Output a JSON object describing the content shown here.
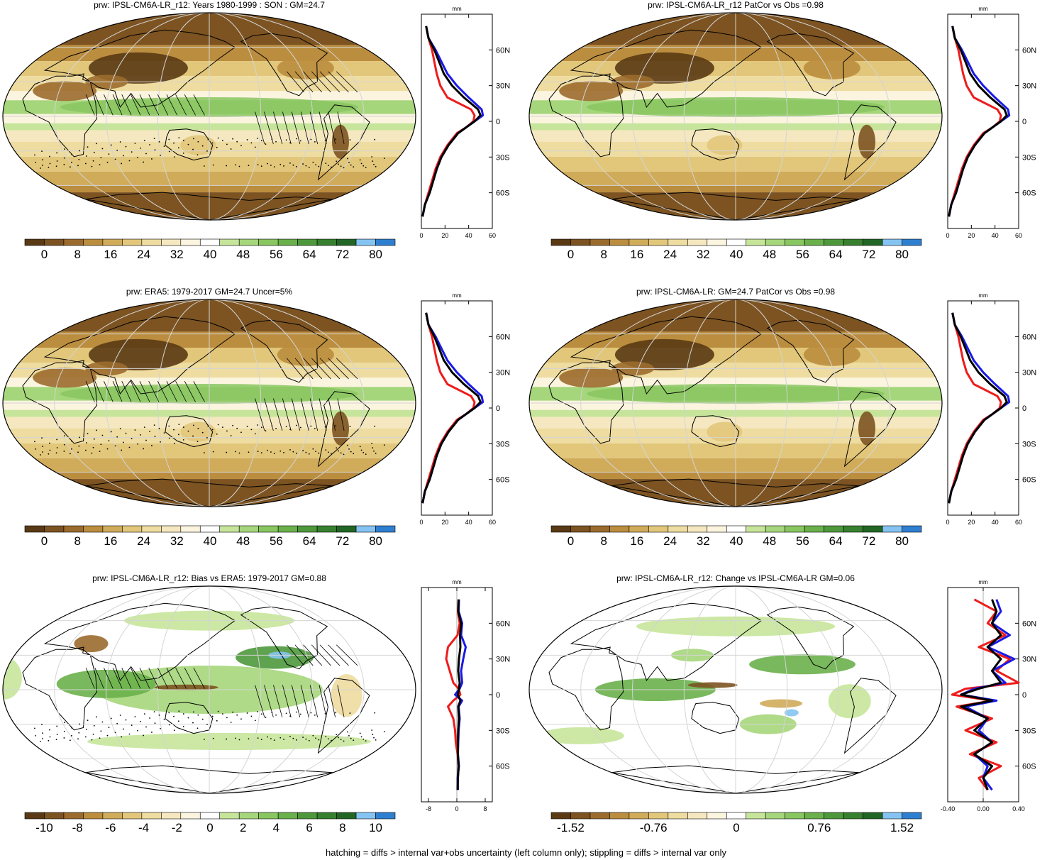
{
  "footer": "hatching = diffs > internal var+obs uncertainty (left column only); stippling = diffs > internal var only",
  "colors": {
    "abs_palette": [
      "#5a3a14",
      "#7c5321",
      "#9b6b2e",
      "#bb8d3e",
      "#d0ab5a",
      "#e2c77b",
      "#eedca0",
      "#f5e8c0",
      "#fbf4df",
      "#ffffff",
      "#c6e59a",
      "#a6d67b",
      "#88c660",
      "#6ab04b",
      "#4e983c",
      "#37802f",
      "#226626",
      "#85c4f2",
      "#2f7fd1"
    ],
    "diff_palette": [
      "#5a3a14",
      "#7c5321",
      "#9b6b2e",
      "#bb8d3e",
      "#d0ab5a",
      "#e2c77b",
      "#eedca0",
      "#f5e8c0",
      "#fbf4df",
      "#ffffff",
      "#c6e59a",
      "#a6d67b",
      "#88c660",
      "#6ab04b",
      "#4e983c",
      "#37802f",
      "#226626",
      "#85c4f2",
      "#2f7fd1"
    ],
    "obs_line": "#ee1c1c",
    "model_line": "#1a1ae6",
    "ens_line": "#000000"
  },
  "chart_data": [
    {
      "id": "p1",
      "type": "heatmap",
      "title": "prw: IPSL-CM6A-LR_r12: Years 1980-1999 : SON : GM=24.7",
      "colorbar": {
        "palette": "abs",
        "labels": [
          "0",
          "8",
          "16",
          "24",
          "32",
          "40",
          "48",
          "56",
          "64",
          "72",
          "80"
        ]
      },
      "pattern": "abs",
      "hatching": true,
      "profile": {
        "unit": "mm",
        "xlim": [
          0,
          60
        ],
        "xticks": [
          "0",
          "20",
          "40",
          "60"
        ],
        "yticks": [
          "60N",
          "30N",
          "0",
          "30S",
          "60S"
        ],
        "lat": [
          80,
          70,
          60,
          50,
          40,
          30,
          20,
          10,
          5,
          0,
          -5,
          -10,
          -20,
          -30,
          -40,
          -50,
          -60,
          -70,
          -80
        ],
        "red": [
          4,
          6,
          9,
          11,
          13,
          16,
          22,
          42,
          45,
          44,
          38,
          30,
          22,
          16,
          12,
          9,
          6,
          3,
          1
        ],
        "blue": [
          4,
          6,
          12,
          17,
          22,
          30,
          40,
          51,
          52,
          45,
          38,
          31,
          23,
          17,
          13,
          10,
          7,
          3,
          1
        ],
        "black": [
          4,
          6,
          11,
          15,
          19,
          26,
          36,
          48,
          50,
          45,
          38,
          31,
          23,
          17,
          13,
          10,
          7,
          3,
          1
        ]
      }
    },
    {
      "id": "p2",
      "type": "heatmap",
      "title": "prw: IPSL-CM6A-LR_r12 PatCor vs Obs =0.98",
      "colorbar": {
        "palette": "abs",
        "labels": [
          "0",
          "8",
          "16",
          "24",
          "32",
          "40",
          "48",
          "56",
          "64",
          "72",
          "80"
        ]
      },
      "pattern": "abs",
      "hatching": false,
      "profile": {
        "unit": "mm",
        "xlim": [
          0,
          60
        ],
        "xticks": [
          "0",
          "20",
          "40",
          "60"
        ],
        "yticks": [
          "60N",
          "30N",
          "0",
          "30S",
          "60S"
        ],
        "lat": [
          80,
          70,
          60,
          50,
          40,
          30,
          20,
          10,
          5,
          0,
          -5,
          -10,
          -20,
          -30,
          -40,
          -50,
          -60,
          -70,
          -80
        ],
        "red": [
          4,
          6,
          9,
          11,
          13,
          16,
          22,
          42,
          45,
          44,
          38,
          30,
          22,
          16,
          12,
          9,
          6,
          3,
          1
        ],
        "blue": [
          4,
          6,
          12,
          17,
          22,
          30,
          40,
          51,
          52,
          45,
          38,
          31,
          23,
          17,
          13,
          10,
          7,
          3,
          1
        ],
        "black": [
          4,
          6,
          11,
          15,
          19,
          26,
          36,
          48,
          50,
          45,
          38,
          31,
          23,
          17,
          13,
          10,
          7,
          3,
          1
        ]
      }
    },
    {
      "id": "p3",
      "type": "heatmap",
      "title": "prw: ERA5: 1979-2017 GM=24.7 Uncer=5%",
      "colorbar": {
        "palette": "abs",
        "labels": [
          "0",
          "8",
          "16",
          "24",
          "32",
          "40",
          "48",
          "56",
          "64",
          "72",
          "80"
        ]
      },
      "pattern": "abs",
      "hatching": true,
      "profile": {
        "unit": "mm",
        "xlim": [
          0,
          60
        ],
        "xticks": [
          "0",
          "20",
          "40",
          "60"
        ],
        "yticks": [
          "60N",
          "30N",
          "0",
          "30S",
          "60S"
        ],
        "lat": [
          80,
          70,
          60,
          50,
          40,
          30,
          20,
          10,
          5,
          0,
          -5,
          -10,
          -20,
          -30,
          -40,
          -50,
          -60,
          -70,
          -80
        ],
        "red": [
          4,
          6,
          9,
          11,
          13,
          16,
          22,
          42,
          45,
          44,
          38,
          30,
          22,
          16,
          12,
          9,
          6,
          3,
          1
        ],
        "blue": [
          4,
          6,
          12,
          17,
          22,
          30,
          40,
          51,
          52,
          45,
          38,
          31,
          23,
          17,
          13,
          10,
          7,
          3,
          1
        ],
        "black": [
          4,
          6,
          11,
          15,
          19,
          26,
          36,
          48,
          50,
          45,
          38,
          31,
          23,
          17,
          13,
          10,
          7,
          3,
          1
        ]
      }
    },
    {
      "id": "p4",
      "type": "heatmap",
      "title": "prw: IPSL-CM6A-LR: GM=24.7 PatCor vs Obs =0.98",
      "colorbar": {
        "palette": "abs",
        "labels": [
          "0",
          "8",
          "16",
          "24",
          "32",
          "40",
          "48",
          "56",
          "64",
          "72",
          "80"
        ]
      },
      "pattern": "abs",
      "hatching": false,
      "profile": {
        "unit": "mm",
        "xlim": [
          0,
          60
        ],
        "xticks": [
          "0",
          "20",
          "40",
          "60"
        ],
        "yticks": [
          "60N",
          "30N",
          "0",
          "30S",
          "60S"
        ],
        "lat": [
          80,
          70,
          60,
          50,
          40,
          30,
          20,
          10,
          5,
          0,
          -5,
          -10,
          -20,
          -30,
          -40,
          -50,
          -60,
          -70,
          -80
        ],
        "red": [
          4,
          6,
          9,
          11,
          13,
          16,
          22,
          42,
          45,
          44,
          38,
          30,
          22,
          16,
          12,
          9,
          6,
          3,
          1
        ],
        "blue": [
          4,
          6,
          12,
          17,
          22,
          30,
          40,
          51,
          52,
          45,
          38,
          31,
          23,
          17,
          13,
          10,
          7,
          3,
          1
        ],
        "black": [
          4,
          6,
          11,
          15,
          19,
          26,
          36,
          48,
          50,
          45,
          38,
          31,
          23,
          17,
          13,
          10,
          7,
          3,
          1
        ]
      }
    },
    {
      "id": "p5",
      "type": "heatmap",
      "title": "prw: IPSL-CM6A-LR_r12: Bias vs ERA5: 1979-2017  GM=0.88",
      "colorbar": {
        "palette": "diff",
        "labels": [
          "-10",
          "-8",
          "-6",
          "-4",
          "-2",
          "0",
          "2",
          "4",
          "6",
          "8",
          "10"
        ]
      },
      "pattern": "diff",
      "hatching": true,
      "profile": {
        "unit": "mm",
        "xlim": [
          -10,
          10
        ],
        "xticks": [
          "-8",
          "0",
          "8"
        ],
        "yticks": [
          "60N",
          "30N",
          "0",
          "30S",
          "60S"
        ],
        "lat": [
          80,
          70,
          60,
          50,
          40,
          30,
          20,
          10,
          5,
          0,
          -5,
          -10,
          -20,
          -30,
          -40,
          -50,
          -60,
          -70,
          -80
        ],
        "red": [
          0.5,
          0.3,
          0.8,
          0.2,
          -2.5,
          -3,
          -2,
          -1,
          0.5,
          1,
          -1,
          -2.5,
          -1,
          -0.5,
          -0.3,
          0.2,
          0.5,
          0.3,
          0.2
        ],
        "blue": [
          0.6,
          0.5,
          1.5,
          1.2,
          2.5,
          1.8,
          1.2,
          1.5,
          0.8,
          -0.5,
          1.5,
          0.5,
          0.8,
          0.5,
          0.4,
          0.3,
          0.6,
          0.2,
          0.3
        ],
        "black": [
          0.5,
          0.4,
          1.2,
          0.9,
          1,
          0.6,
          0.4,
          0.8,
          0.6,
          0.3,
          1,
          0.4,
          0.6,
          0.4,
          0.3,
          0.3,
          0.5,
          0.3,
          0.2
        ]
      }
    },
    {
      "id": "p6",
      "type": "heatmap",
      "title": "prw: IPSL-CM6A-LR_r12: Change vs IPSL-CM6A-LR GM=0.06",
      "colorbar": {
        "palette": "diff",
        "labels": [
          "-1.52",
          "-0.76",
          "0",
          "0.76",
          "1.52"
        ]
      },
      "pattern": "change",
      "hatching": false,
      "profile": {
        "unit": "mm",
        "xlim": [
          -0.4,
          0.4
        ],
        "xticks": [
          "-0.40",
          "0.00",
          "0.40"
        ],
        "yticks": [
          "60N",
          "30N",
          "0",
          "30S",
          "60S"
        ],
        "lat": [
          80,
          70,
          60,
          50,
          40,
          30,
          20,
          10,
          5,
          0,
          -5,
          -10,
          -20,
          -30,
          -40,
          -50,
          -60,
          -70,
          -80
        ],
        "red": [
          -0.1,
          0.15,
          0.05,
          0.25,
          -0.05,
          0.3,
          0.15,
          0.4,
          -0.2,
          -0.35,
          0.1,
          -0.3,
          0.1,
          -0.2,
          0.15,
          -0.15,
          0.2,
          -0.05,
          0.05
        ],
        "blue": [
          0.15,
          0.2,
          0.1,
          0.3,
          0.05,
          0.35,
          0.1,
          0.25,
          -0.1,
          -0.25,
          0.15,
          -0.2,
          0.05,
          -0.05,
          0.1,
          -0.1,
          0.05,
          0.0,
          0.1
        ],
        "black": [
          0.1,
          0.15,
          0.1,
          0.2,
          0.05,
          0.2,
          0.1,
          0.2,
          -0.05,
          -0.25,
          0.1,
          -0.25,
          0.05,
          -0.1,
          0.1,
          -0.1,
          0.1,
          0.0,
          0.05
        ]
      }
    }
  ]
}
